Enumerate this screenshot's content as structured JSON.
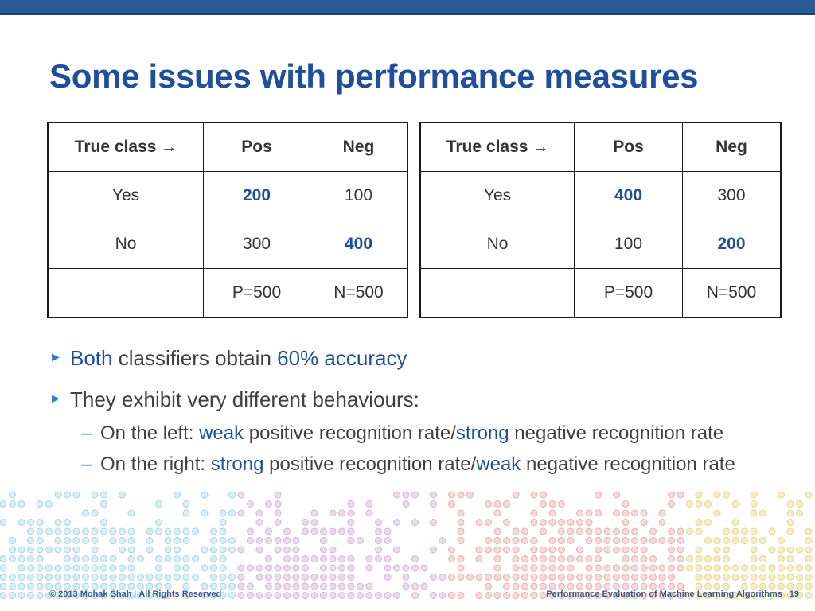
{
  "slide": {
    "title": "Some issues with performance measures",
    "accent_color": "#1f4e9c",
    "bar_color": "#2a5b95"
  },
  "tables": {
    "left": {
      "header": [
        "True class",
        "Pos",
        "Neg"
      ],
      "rows": [
        [
          "Yes",
          "200",
          "100"
        ],
        [
          "No",
          "300",
          "400"
        ],
        [
          "",
          "P=500",
          "N=500"
        ]
      ]
    },
    "right": {
      "header": [
        "True class",
        "Pos",
        "Neg"
      ],
      "rows": [
        [
          "Yes",
          "400",
          "300"
        ],
        [
          "No",
          "100",
          "200"
        ],
        [
          "",
          "P=500",
          "N=500"
        ]
      ]
    },
    "arrow_glyph": "→"
  },
  "bullets": {
    "b1": {
      "a": "Both",
      "b": " classifiers obtain ",
      "c": "60% accuracy"
    },
    "b2": {
      "text": "They exhibit very different behaviours:"
    },
    "s1": {
      "a": "On the left: ",
      "b": "weak",
      "c": " positive recognition rate/",
      "d": "strong",
      "e": " negative recognition rate"
    },
    "s2": {
      "a": "On the right: ",
      "b": "strong",
      "c": " positive recognition rate/",
      "d": "weak",
      "e": " negative recognition rate"
    }
  },
  "footer": {
    "left": "© 2013 Mohak Shah",
    "left2": "All Rights Reserved",
    "right": "Performance Evaluation of  Machine Learning Algorithms",
    "page": "19"
  }
}
